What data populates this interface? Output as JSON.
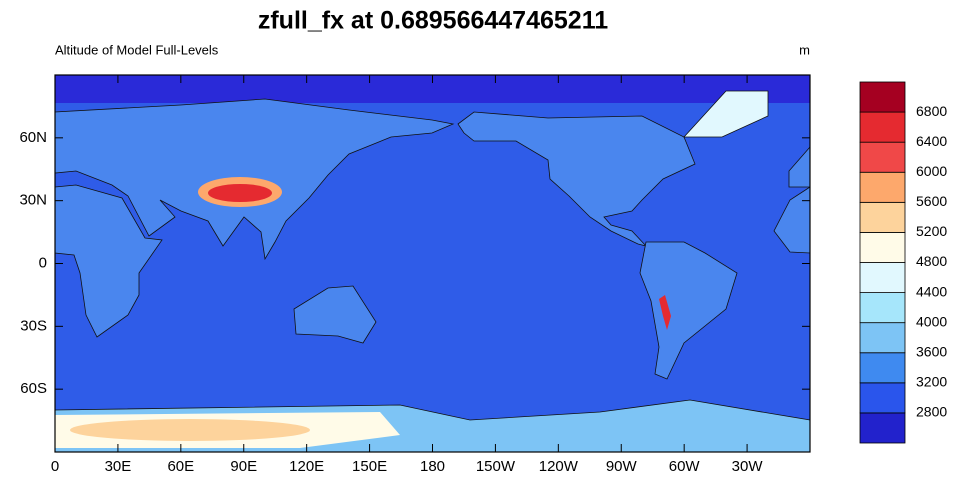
{
  "title": "zfull_fx at 0.689566447465211",
  "left_label": "Altitude of Model Full-Levels",
  "right_label": "m",
  "map": {
    "xlim": [
      0,
      360
    ],
    "ylim": [
      -90,
      90
    ],
    "xticks": [
      0,
      {
        "value": 30,
        "label": "30E"
      },
      {
        "value": 60,
        "label": "60E"
      },
      {
        "value": 90,
        "label": "90E"
      },
      {
        "value": 120,
        "label": "120E"
      },
      {
        "value": 150,
        "label": "150E"
      },
      180,
      {
        "value": 210,
        "label": "150W"
      },
      {
        "value": 240,
        "label": "120W"
      },
      {
        "value": 270,
        "label": "90W"
      },
      {
        "value": 300,
        "label": "60W"
      },
      {
        "value": 330,
        "label": "30W"
      }
    ],
    "yticks": [
      {
        "value": -60,
        "label": "60S"
      },
      {
        "value": -30,
        "label": "30S"
      },
      0,
      {
        "value": 30,
        "label": "30N"
      },
      {
        "value": 60,
        "label": "60N"
      }
    ]
  },
  "colorbar": {
    "levels": [
      2800,
      3200,
      3600,
      4000,
      4400,
      4800,
      5200,
      5600,
      6000,
      6400,
      6800
    ],
    "colors": [
      "#2222cc",
      "#2a55ec",
      "#3f8af0",
      "#7dc4f5",
      "#a6e6fb",
      "#e1f8fe",
      "#fffbe8",
      "#fdd39c",
      "#fda86c",
      "#f04848",
      "#e52a30",
      "#a50021"
    ]
  }
}
